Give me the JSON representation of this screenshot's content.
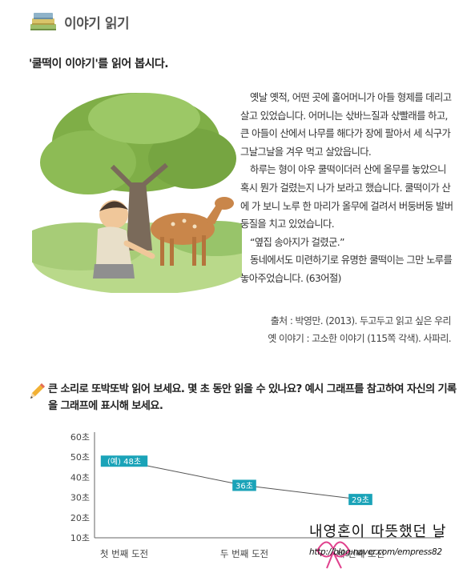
{
  "header": {
    "title": "이야기 읽기",
    "icon": "book-stack-icon"
  },
  "instruction": "'쿨떡이 이야기'를 읽어 봅시다.",
  "story": {
    "paragraphs": [
      "옛날 옛적, 어떤 곳에 홀어머니가 아들 형제를 데리고 살고 있었습니다. 어머니는 삯바느질과 삯빨래를 하고, 큰 아들이 산에서 나무를 해다가 장에 팔아서 세 식구가 그날그날을 겨우 먹고 살았읍니다.",
      "하루는 형이 아우 쿨떡이더러 산에 올무를 놓았으니 혹시 뭔가 걸렸는지 나가 보라고 했습니다. 쿨떡이가 산에 가 보니 노루 한 마리가 올무에 걸려서 버둥버둥 발버둥질을 치고 있었습니다.",
      "“옆집 송아지가 걸렸군.”",
      "동네에서도 미련하기로 유명한 쿨떡이는 그만 노루를 놓아주었습니다. (63어절)"
    ]
  },
  "source": {
    "line1": "출처 : 박영만. (2013). 두고두고 읽고 싶은 우리",
    "line2": "옛 이야기 : 고소한 이야기 (115쪽 각색). 사파리."
  },
  "task": {
    "icon": "pencil-icon",
    "text": "큰 소리로 또박또박 읽어 보세요. 몇 초 동안 읽을 수 있나요? 예시 그래프를 참고하여 자신의 기록을 그래프에 표시해 보세요."
  },
  "chart_data": {
    "type": "line",
    "categories": [
      "첫 번째 도전",
      "두 번째 도전",
      "세 번째 도전"
    ],
    "series": [
      {
        "values": [
          48,
          36,
          29
        ],
        "labels": [
          "(예) 48초",
          "36초",
          "29초"
        ]
      }
    ],
    "y_ticks": [
      "10초",
      "20초",
      "30초",
      "40초",
      "50초",
      "60초"
    ],
    "ylim": [
      10,
      60
    ],
    "grid": false,
    "label_color": "#1aa3b8",
    "line_color": "#555555"
  },
  "watermark": {
    "title": "내영혼이 따뜻했던 날",
    "url": "http://blog.naver.com/empress82"
  },
  "colors": {
    "accent": "#1aa3b8",
    "ribbon": "#e0418d"
  }
}
